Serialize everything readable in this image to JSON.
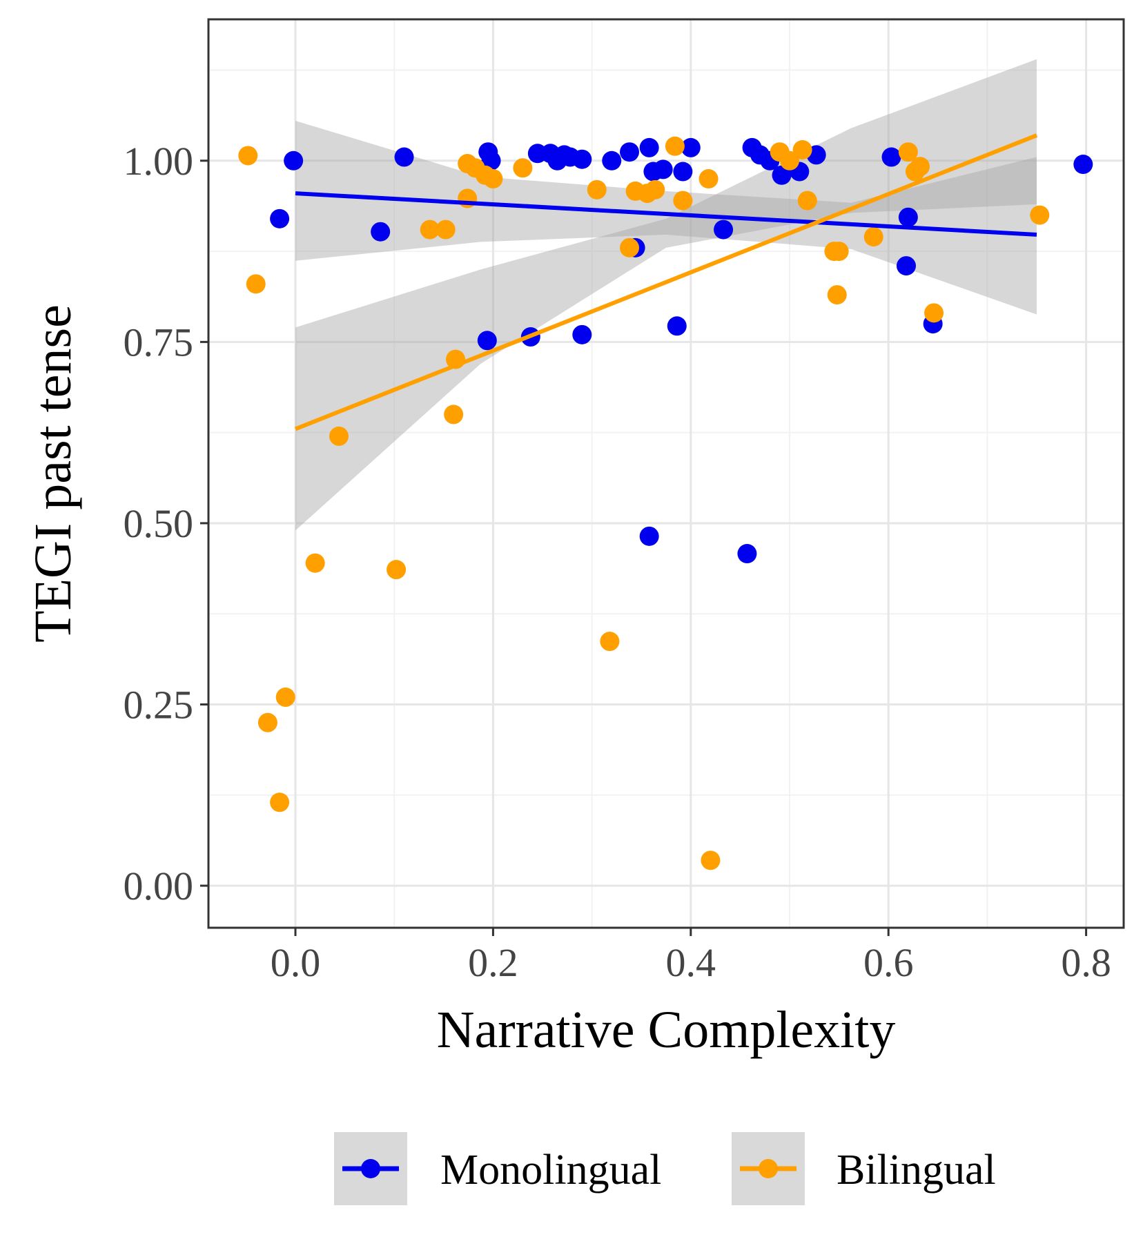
{
  "chart_data": {
    "type": "scatter",
    "title": "",
    "xlabel": "Narrative Complexity",
    "ylabel": "TEGI past tense",
    "xlim": [
      -0.088,
      0.838
    ],
    "ylim": [
      -0.058,
      1.195
    ],
    "x_ticks": [
      0.0,
      0.2,
      0.4,
      0.6,
      0.8
    ],
    "x_tick_labels": [
      "0.0",
      "0.2",
      "0.4",
      "0.6",
      "0.8"
    ],
    "y_ticks": [
      0.0,
      0.25,
      0.5,
      0.75,
      1.0
    ],
    "y_tick_labels": [
      "0.00",
      "0.25",
      "0.50",
      "0.75",
      "1.00"
    ],
    "grid": true,
    "legend_position": "bottom",
    "series": [
      {
        "name": "Monolingual",
        "color": "#0000ee",
        "points": [
          [
            -0.002,
            1.0
          ],
          [
            -0.016,
            0.92
          ],
          [
            0.086,
            0.902
          ],
          [
            0.11,
            1.005
          ],
          [
            0.195,
            1.012
          ],
          [
            0.198,
            1.0
          ],
          [
            0.194,
            0.752
          ],
          [
            0.238,
            0.757
          ],
          [
            0.245,
            1.01
          ],
          [
            0.258,
            1.01
          ],
          [
            0.265,
            1.0
          ],
          [
            0.272,
            1.008
          ],
          [
            0.278,
            1.005
          ],
          [
            0.29,
            1.002
          ],
          [
            0.29,
            0.76
          ],
          [
            0.32,
            1.0
          ],
          [
            0.338,
            1.012
          ],
          [
            0.344,
            0.88
          ],
          [
            0.358,
            1.018
          ],
          [
            0.358,
            0.482
          ],
          [
            0.362,
            0.985
          ],
          [
            0.372,
            0.988
          ],
          [
            0.386,
            0.772
          ],
          [
            0.392,
            0.985
          ],
          [
            0.4,
            1.018
          ],
          [
            0.433,
            0.905
          ],
          [
            0.457,
            0.458
          ],
          [
            0.462,
            1.018
          ],
          [
            0.47,
            1.008
          ],
          [
            0.48,
            1.0
          ],
          [
            0.492,
            0.98
          ],
          [
            0.51,
            0.985
          ],
          [
            0.527,
            1.008
          ],
          [
            0.603,
            1.005
          ],
          [
            0.618,
            0.855
          ],
          [
            0.62,
            0.922
          ],
          [
            0.645,
            0.775
          ],
          [
            0.797,
            0.995
          ]
        ],
        "fit": {
          "x": [
            0.0,
            0.75
          ],
          "y": [
            0.955,
            0.898
          ]
        },
        "ci_lower": [
          0.862,
          0.888,
          0.898,
          0.878,
          0.788
        ],
        "ci_upper": [
          1.055,
          0.978,
          0.958,
          0.942,
          1.005
        ]
      },
      {
        "name": "Bilingual",
        "color": "#ffa000",
        "points": [
          [
            -0.048,
            1.007
          ],
          [
            -0.04,
            0.83
          ],
          [
            -0.028,
            0.225
          ],
          [
            -0.016,
            0.115
          ],
          [
            -0.01,
            0.26
          ],
          [
            0.02,
            0.445
          ],
          [
            0.044,
            0.62
          ],
          [
            0.102,
            0.436
          ],
          [
            0.136,
            0.905
          ],
          [
            0.152,
            0.905
          ],
          [
            0.16,
            0.65
          ],
          [
            0.162,
            0.726
          ],
          [
            0.174,
            0.996
          ],
          [
            0.174,
            0.948
          ],
          [
            0.182,
            0.99
          ],
          [
            0.192,
            0.98
          ],
          [
            0.2,
            0.975
          ],
          [
            0.23,
            0.99
          ],
          [
            0.305,
            0.96
          ],
          [
            0.318,
            0.337
          ],
          [
            0.338,
            0.88
          ],
          [
            0.344,
            0.958
          ],
          [
            0.356,
            0.955
          ],
          [
            0.364,
            0.96
          ],
          [
            0.384,
            1.02
          ],
          [
            0.392,
            0.945
          ],
          [
            0.418,
            0.975
          ],
          [
            0.42,
            0.035
          ],
          [
            0.49,
            1.012
          ],
          [
            0.5,
            1.0
          ],
          [
            0.513,
            1.015
          ],
          [
            0.518,
            0.945
          ],
          [
            0.545,
            0.875
          ],
          [
            0.55,
            0.875
          ],
          [
            0.548,
            0.815
          ],
          [
            0.585,
            0.895
          ],
          [
            0.62,
            1.012
          ],
          [
            0.627,
            0.985
          ],
          [
            0.632,
            0.992
          ],
          [
            0.646,
            0.79
          ],
          [
            0.753,
            0.925
          ]
        ],
        "fit": {
          "x": [
            0.0,
            0.75
          ],
          "y": [
            0.63,
            1.035
          ]
        },
        "ci_lower": [
          0.49,
          0.72,
          0.88,
          0.928,
          0.94
        ],
        "ci_upper": [
          0.77,
          0.85,
          0.92,
          1.045,
          1.14
        ]
      }
    ]
  }
}
